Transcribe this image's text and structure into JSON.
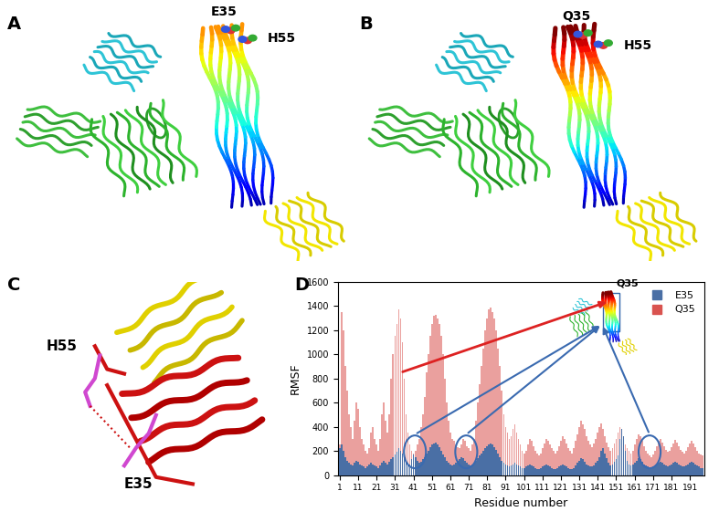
{
  "panels": [
    {
      "label": "A",
      "residues": [
        "E35",
        "H55"
      ]
    },
    {
      "label": "B",
      "residues": [
        "Q35",
        "H55"
      ]
    },
    {
      "label": "C",
      "residues": [
        "H55",
        "E35"
      ]
    },
    {
      "label": "D"
    }
  ],
  "chart_data": {
    "type": "bar",
    "x_label": "Residue number",
    "y_label": "RMSF",
    "annotations": [
      "Q35"
    ],
    "legend": "upper right",
    "xlim": [
      0,
      199
    ],
    "ylim": [
      0,
      1600
    ],
    "xticks": [
      1,
      11,
      21,
      31,
      41,
      51,
      61,
      71,
      81,
      91,
      101,
      111,
      121,
      131,
      141,
      151,
      161,
      171,
      181,
      191
    ],
    "yticks": [
      0,
      200,
      400,
      600,
      800,
      1000,
      1200,
      1400,
      1600
    ],
    "x": [
      1,
      2,
      3,
      4,
      5,
      6,
      7,
      8,
      9,
      10,
      11,
      12,
      13,
      14,
      15,
      16,
      17,
      18,
      19,
      20,
      21,
      22,
      23,
      24,
      25,
      26,
      27,
      28,
      29,
      30,
      31,
      32,
      33,
      34,
      35,
      36,
      37,
      38,
      39,
      40,
      41,
      42,
      43,
      44,
      45,
      46,
      47,
      48,
      49,
      50,
      51,
      52,
      53,
      54,
      55,
      56,
      57,
      58,
      59,
      60,
      61,
      62,
      63,
      64,
      65,
      66,
      67,
      68,
      69,
      70,
      71,
      72,
      73,
      74,
      75,
      76,
      77,
      78,
      79,
      80,
      81,
      82,
      83,
      84,
      85,
      86,
      87,
      88,
      89,
      90,
      91,
      92,
      93,
      94,
      95,
      96,
      97,
      98,
      99,
      100,
      101,
      102,
      103,
      104,
      105,
      106,
      107,
      108,
      109,
      110,
      111,
      112,
      113,
      114,
      115,
      116,
      117,
      118,
      119,
      120,
      121,
      122,
      123,
      124,
      125,
      126,
      127,
      128,
      129,
      130,
      131,
      132,
      133,
      134,
      135,
      136,
      137,
      138,
      139,
      140,
      141,
      142,
      143,
      144,
      145,
      146,
      147,
      148,
      149,
      150,
      151,
      152,
      153,
      154,
      155,
      156,
      157,
      158,
      159,
      160,
      161,
      162,
      163,
      164,
      165,
      166,
      167,
      168,
      169,
      170,
      171,
      172,
      173,
      174,
      175,
      176,
      177,
      178,
      179,
      180,
      181,
      182,
      183,
      184,
      185,
      186,
      187,
      188,
      189,
      190,
      191,
      192,
      193,
      194,
      195,
      196,
      197,
      198
    ],
    "series": [
      {
        "name": "E35",
        "color": "#4a6fa5",
        "values": [
          220,
          250,
          200,
          150,
          120,
          100,
          90,
          80,
          100,
          120,
          110,
          90,
          80,
          70,
          60,
          70,
          90,
          100,
          90,
          80,
          70,
          60,
          80,
          100,
          120,
          100,
          90,
          110,
          130,
          150,
          170,
          190,
          220,
          200,
          180,
          150,
          120,
          100,
          90,
          130,
          170,
          150,
          120,
          100,
          110,
          130,
          150,
          180,
          200,
          230,
          250,
          260,
          270,
          250,
          230,
          200,
          170,
          150,
          120,
          100,
          90,
          80,
          90,
          100,
          120,
          130,
          150,
          140,
          120,
          100,
          90,
          80,
          90,
          100,
          120,
          140,
          160,
          180,
          200,
          220,
          240,
          250,
          260,
          250,
          230,
          210,
          180,
          150,
          120,
          100,
          90,
          80,
          70,
          80,
          90,
          100,
          90,
          80,
          70,
          60,
          60,
          70,
          80,
          90,
          80,
          70,
          60,
          50,
          50,
          60,
          70,
          80,
          90,
          80,
          70,
          60,
          50,
          50,
          60,
          70,
          80,
          90,
          80,
          70,
          60,
          50,
          50,
          60,
          80,
          100,
          120,
          140,
          130,
          110,
          90,
          80,
          70,
          70,
          80,
          100,
          120,
          150,
          200,
          220,
          180,
          140,
          100,
          80,
          90,
          110,
          130,
          160,
          300,
          380,
          320,
          200,
          120,
          90,
          80,
          90,
          100,
          120,
          140,
          130,
          110,
          90,
          80,
          70,
          60,
          60,
          70,
          80,
          90,
          100,
          110,
          100,
          90,
          80,
          70,
          80,
          90,
          100,
          110,
          100,
          90,
          80,
          70,
          70,
          80,
          90,
          100,
          110,
          100,
          90,
          80,
          70,
          60,
          60
        ]
      },
      {
        "name": "Q35",
        "color": "#d9534f",
        "values": [
          250,
          1350,
          1200,
          900,
          700,
          500,
          400,
          300,
          450,
          600,
          550,
          400,
          300,
          250,
          200,
          180,
          220,
          350,
          400,
          300,
          250,
          200,
          300,
          500,
          600,
          450,
          350,
          500,
          800,
          1000,
          1150,
          1250,
          1370,
          1300,
          1100,
          800,
          500,
          350,
          250,
          200,
          180,
          200,
          250,
          300,
          400,
          500,
          650,
          850,
          1000,
          1150,
          1250,
          1320,
          1330,
          1300,
          1250,
          1150,
          1000,
          800,
          600,
          450,
          350,
          300,
          280,
          250,
          230,
          220,
          250,
          300,
          280,
          240,
          220,
          200,
          250,
          300,
          450,
          600,
          750,
          900,
          1050,
          1200,
          1300,
          1370,
          1390,
          1350,
          1300,
          1200,
          1050,
          900,
          700,
          500,
          400,
          350,
          300,
          320,
          380,
          420,
          350,
          300,
          250,
          200,
          180,
          200,
          250,
          300,
          280,
          240,
          200,
          180,
          160,
          180,
          220,
          260,
          300,
          280,
          250,
          220,
          200,
          180,
          200,
          240,
          280,
          320,
          300,
          260,
          220,
          200,
          180,
          220,
          280,
          340,
          400,
          450,
          420,
          380,
          320,
          280,
          250,
          230,
          260,
          300,
          350,
          400,
          430,
          380,
          320,
          270,
          230,
          200,
          220,
          260,
          300,
          350,
          400,
          360,
          300,
          250,
          220,
          200,
          180,
          200,
          250,
          300,
          340,
          320,
          280,
          240,
          200,
          180,
          160,
          150,
          170,
          200,
          240,
          280,
          300,
          270,
          240,
          210,
          190,
          200,
          230,
          260,
          290,
          270,
          240,
          210,
          190,
          180,
          200,
          230,
          260,
          280,
          260,
          230,
          200,
          180,
          170,
          160
        ]
      }
    ]
  }
}
